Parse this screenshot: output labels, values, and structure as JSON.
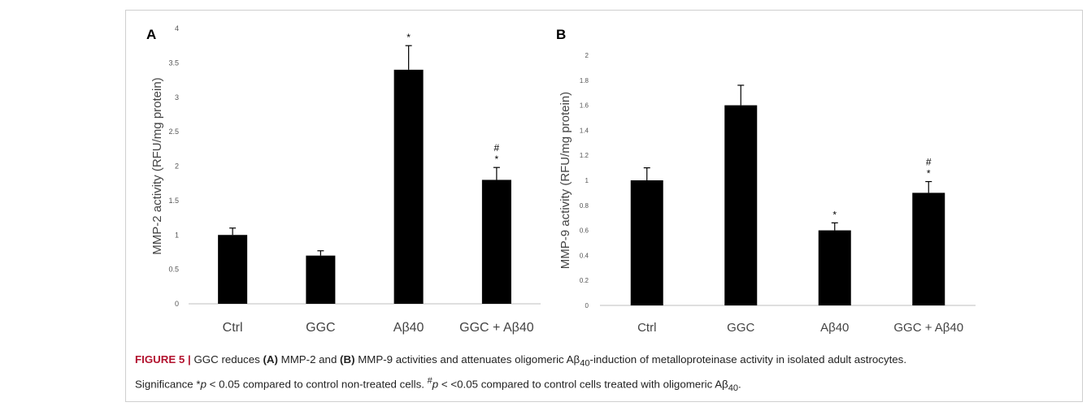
{
  "chart_data": [
    {
      "type": "bar",
      "panel_label": "A",
      "categories": [
        "Ctrl",
        "GGC",
        "Aβ40",
        "GGC + Aβ40"
      ],
      "values": [
        1.0,
        0.7,
        3.4,
        1.8
      ],
      "errors": [
        0.1,
        0.07,
        0.35,
        0.18
      ],
      "annotations": [
        "",
        "",
        "*",
        "#\n*"
      ],
      "ylabel": "MMP-2 activity (RFU/mg protein)",
      "xlabel": "",
      "ylim": [
        0,
        4
      ],
      "yticks": [
        0,
        0.5,
        1,
        1.5,
        2,
        2.5,
        3,
        3.5,
        4
      ],
      "ytick_labels": [
        "0",
        "0.5",
        "1",
        "1.5",
        "2",
        "2.5",
        "3",
        "3.5",
        "4"
      ],
      "bar_color": "#000000",
      "grid": false
    },
    {
      "type": "bar",
      "panel_label": "B",
      "categories": [
        "Ctrl",
        "GGC",
        "Aβ40",
        "GGC + Aβ40"
      ],
      "values": [
        1.0,
        1.6,
        0.6,
        0.9
      ],
      "errors": [
        0.1,
        0.16,
        0.06,
        0.09
      ],
      "annotations": [
        "",
        "",
        "*",
        "#\n*"
      ],
      "ylabel": "MMP-9 activity (RFU/mg protein)",
      "xlabel": "",
      "ylim": [
        0,
        2
      ],
      "yticks": [
        0,
        0.2,
        0.4,
        0.6,
        0.8,
        1,
        1.2,
        1.4,
        1.6,
        1.8,
        2
      ],
      "ytick_labels": [
        "0",
        "0.2",
        "0.4",
        "0.6",
        "0.8",
        "1",
        "1.2",
        "1.4",
        "1.6",
        "1.8",
        "2"
      ],
      "bar_color": "#000000",
      "grid": false
    }
  ],
  "caption": {
    "figure_label": "FIGURE 5",
    "separator": "|",
    "text_1": " GGC reduces ",
    "a_ref": "(A)",
    "text_2": " MMP-2 and ",
    "b_ref": "(B)",
    "text_3": " MMP-9 activities and attenuates oligomeric Aβ",
    "sub_1": "40",
    "text_4": "-induction of metalloproteinase activity in isolated adult astrocytes.",
    "text_5": "Significance *",
    "p_1": "p",
    "text_6": " < 0.05 compared to control non-treated cells. ",
    "sup_hash": "#",
    "p_2": "p",
    "text_7": " < <0.05 compared to control cells treated with oligomeric Aβ",
    "sub_2": "40",
    "text_8": "."
  }
}
